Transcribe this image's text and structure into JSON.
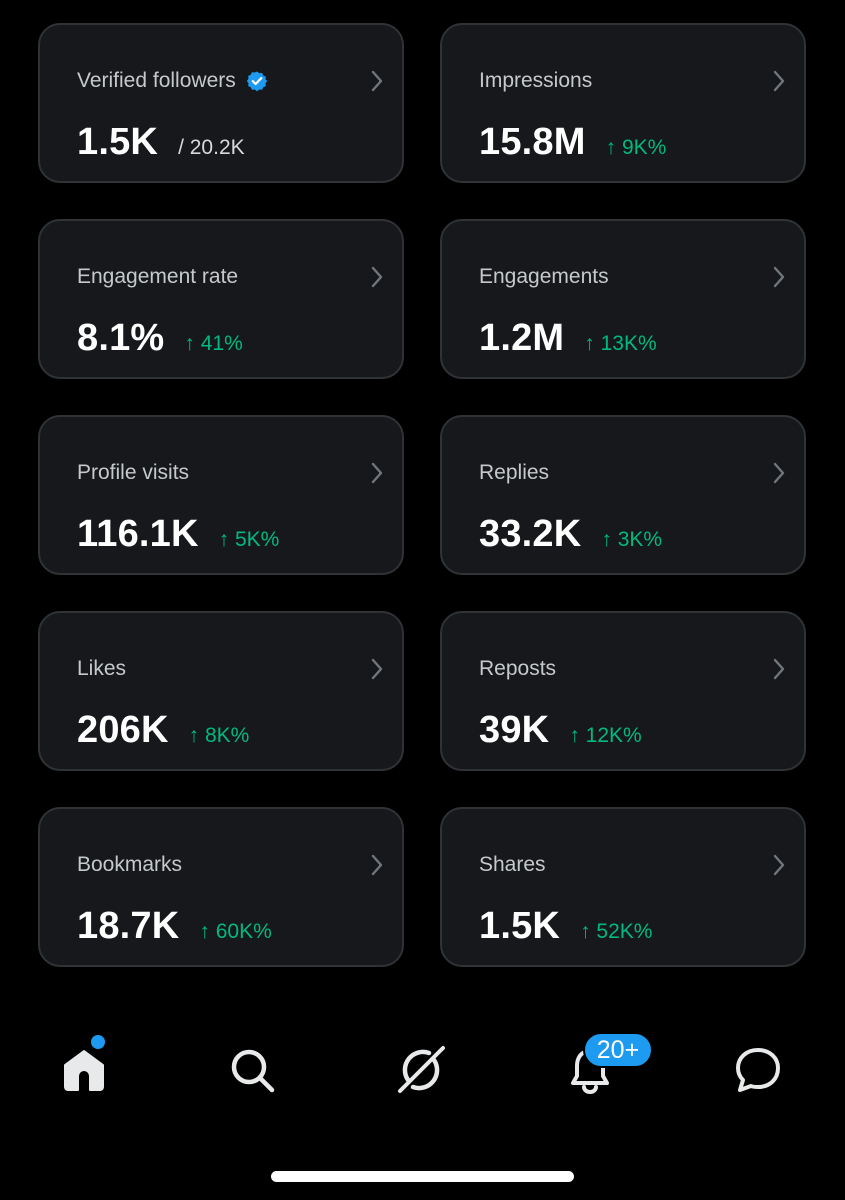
{
  "cards": [
    {
      "label": "Verified followers",
      "value": "1.5K",
      "sub": "/ 20.2K",
      "change": "",
      "verified": true
    },
    {
      "label": "Impressions",
      "value": "15.8M",
      "sub": "",
      "change": "↑ 9K%"
    },
    {
      "label": "Engagement rate",
      "value": "8.1%",
      "sub": "",
      "change": "↑ 41%"
    },
    {
      "label": "Engagements",
      "value": "1.2M",
      "sub": "",
      "change": "↑ 13K%"
    },
    {
      "label": "Profile visits",
      "value": "116.1K",
      "sub": "",
      "change": "↑ 5K%"
    },
    {
      "label": "Replies",
      "value": "33.2K",
      "sub": "",
      "change": "↑ 3K%"
    },
    {
      "label": "Likes",
      "value": "206K",
      "sub": "",
      "change": "↑ 8K%"
    },
    {
      "label": "Reposts",
      "value": "39K",
      "sub": "",
      "change": "↑ 12K%"
    },
    {
      "label": "Bookmarks",
      "value": "18.7K",
      "sub": "",
      "change": "↑ 60K%"
    },
    {
      "label": "Shares",
      "value": "1.5K",
      "sub": "",
      "change": "↑ 52K%"
    }
  ],
  "nav": {
    "items": [
      "home-icon",
      "search-icon",
      "grok-icon",
      "bell-icon",
      "messages-icon"
    ],
    "notifications_badge": "20+"
  },
  "colors": {
    "background": "#000000",
    "card_background": "#16181c",
    "card_border": "#2f3336",
    "positive_change": "#00ba7c",
    "accent": "#1d9bf0"
  }
}
